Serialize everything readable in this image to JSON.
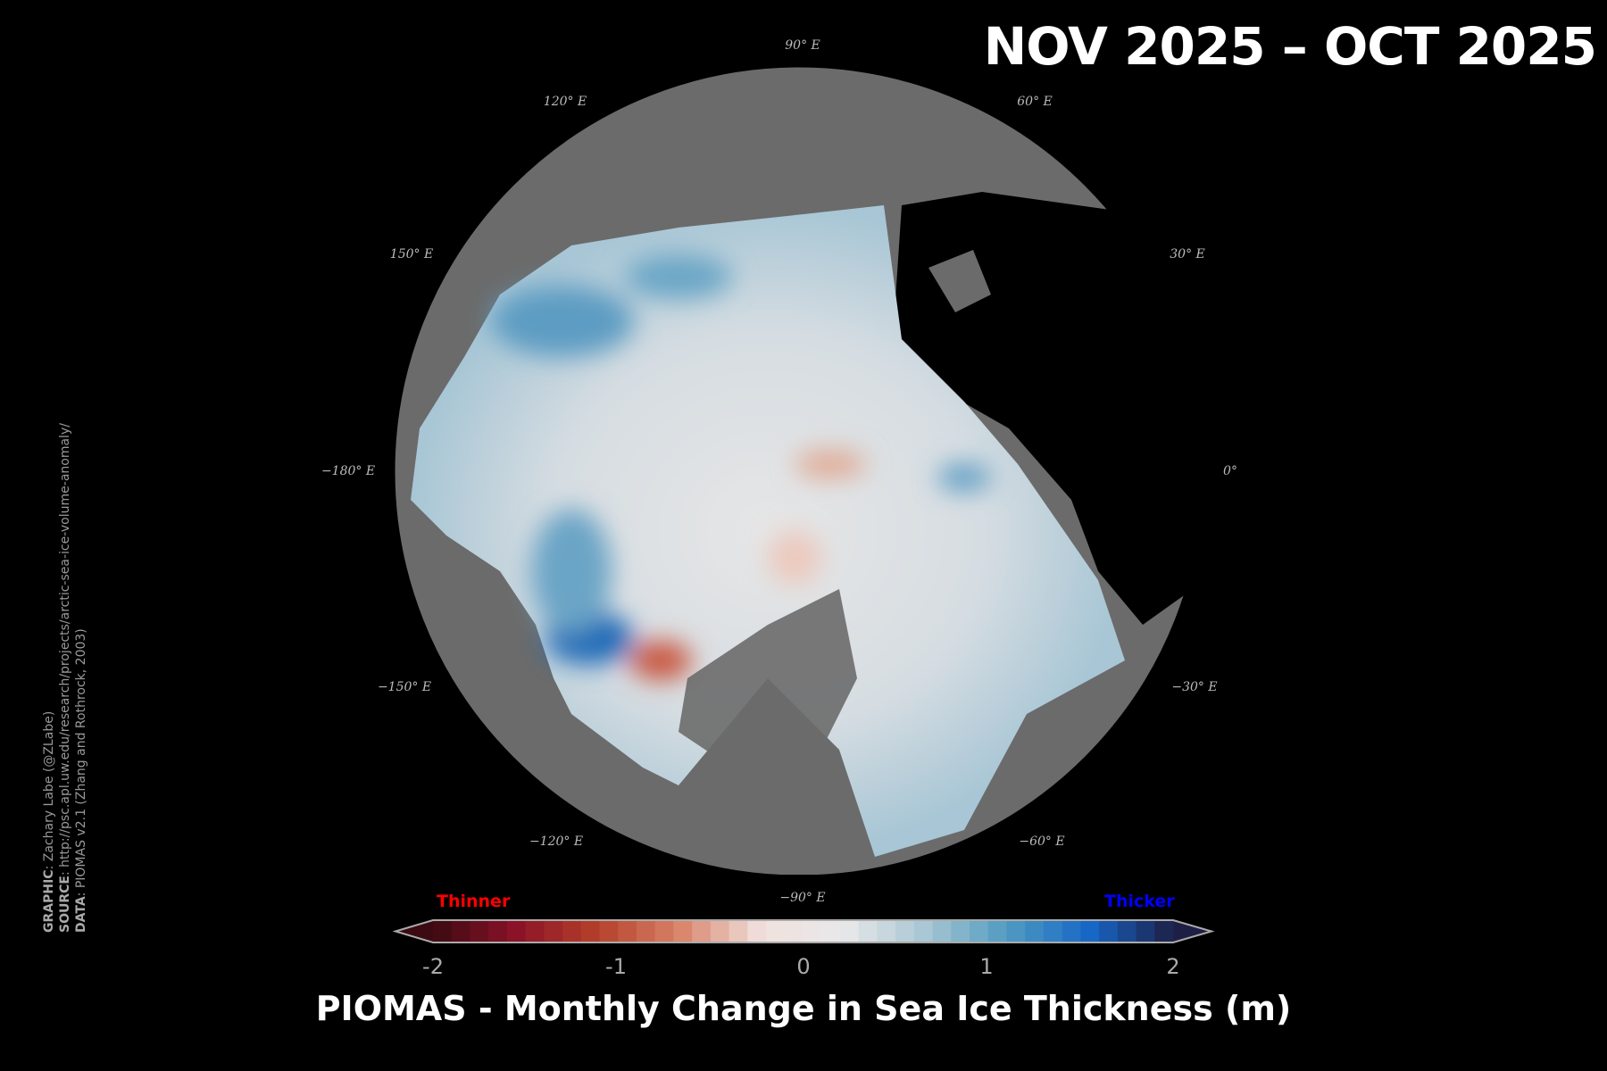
{
  "header": {
    "title": "NOV 2025 – OCT 2025"
  },
  "map": {
    "longitude_labels": [
      "90° E",
      "120° E",
      "60° E",
      "150° E",
      "30° E",
      "−180° E",
      "0°",
      "−150° E",
      "−30° E",
      "−120° E",
      "−60° E",
      "−90° E"
    ],
    "colors": {
      "land": "#6b6b6b",
      "ocean": "#000000",
      "border": "#999999"
    }
  },
  "credits": {
    "graphic_label": "GRAPHIC",
    "graphic": ": Zachary Labe (@ZLabe)",
    "source_label": "SOURCE",
    "source": ": http://psc.apl.uw.edu/research/projects/arctic-sea-ice-volume-anomaly/",
    "data_label": "DATA",
    "data": ": PIOMAS v2.1 (Zhang and Rothrock, 2003)"
  },
  "chart_data": {
    "type": "heatmap",
    "title": "PIOMAS - Monthly Change in Sea Ice Thickness (m)",
    "colorbar": {
      "min": -2,
      "max": 2,
      "step": 0.1,
      "extend": "both",
      "ticks": [
        "-2",
        "-1",
        "0",
        "1",
        "2"
      ],
      "low_label": "Thinner",
      "high_label": "Thicker",
      "low_label_color": "#ff0000",
      "high_label_color": "#0000ff",
      "stops": [
        "#3b0a12",
        "#8a1228",
        "#b5402a",
        "#d9836a",
        "#f0e2df",
        "#e8e8e8",
        "#a7c6d3",
        "#4f9ac0",
        "#1666c6",
        "#1e1f45"
      ]
    }
  }
}
